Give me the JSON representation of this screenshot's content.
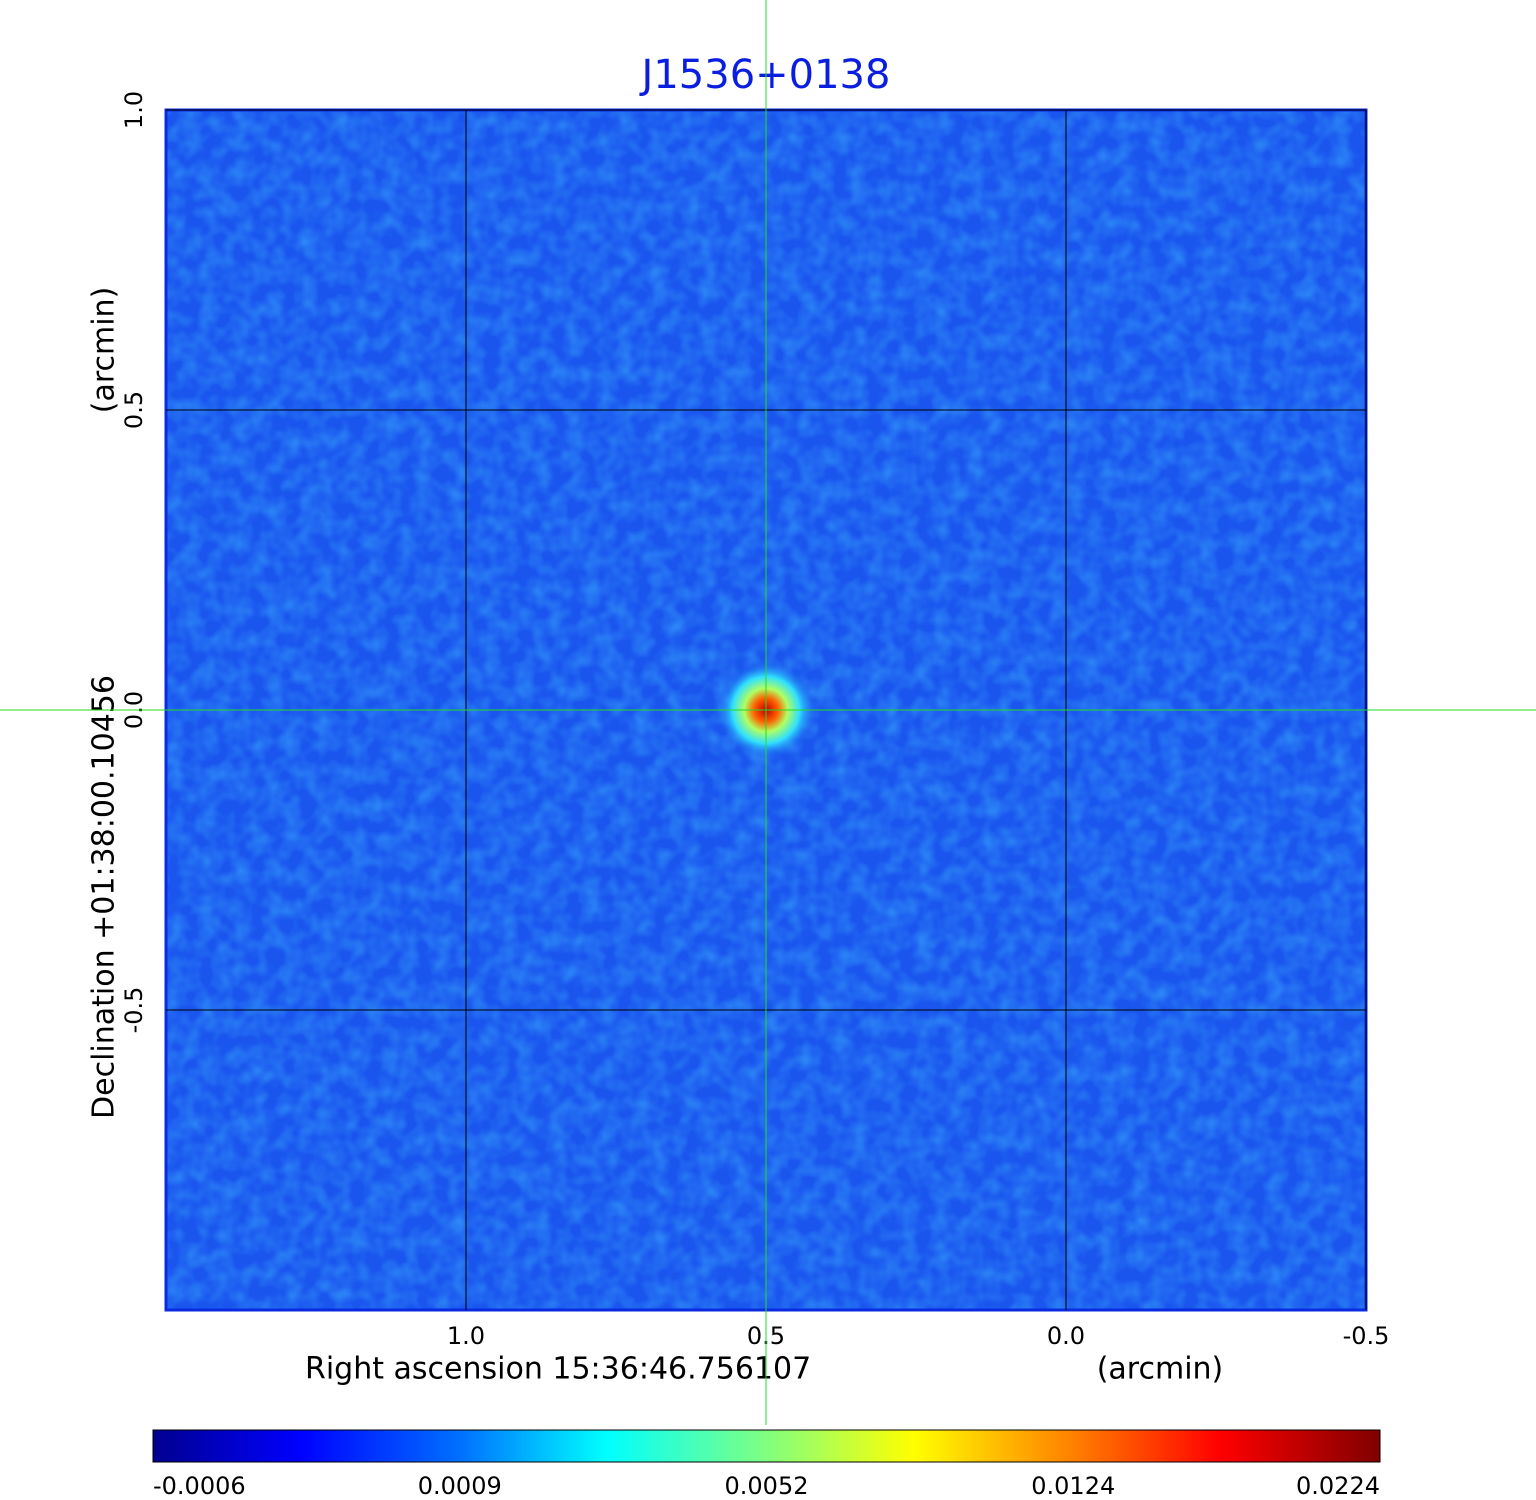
{
  "chart_data": {
    "type": "image",
    "title": "J1536+0138",
    "xlabel": "Right ascension  15:36:46.756107",
    "xunit": "(arcmin)",
    "ylabel": "Declination  +01:38:00.10456",
    "yunit": "(arcmin)",
    "xlim": [
      1.5,
      -0.5
    ],
    "ylim": [
      -1.0,
      1.0
    ],
    "xticks": [
      {
        "value": 1,
        "label": "1.0"
      },
      {
        "value": 0.5,
        "label": "0.5"
      },
      {
        "value": 0,
        "label": "0.0"
      },
      -0.5
    ],
    "yticks": [
      {
        "value": -0.5,
        "label": "-0.5"
      },
      {
        "value": 0,
        "label": "0.0"
      },
      {
        "value": 0.5,
        "label": "0.5"
      },
      {
        "value": 1,
        "label": "1.0"
      }
    ],
    "grid": true,
    "colormap": "jet",
    "crosshair": {
      "x": 0.5,
      "y": 0,
      "color": "#22dd22"
    },
    "colorbar_ticks": [
      -0.0006,
      0.0009,
      0.0052,
      0.0124,
      0.0224
    ]
  }
}
